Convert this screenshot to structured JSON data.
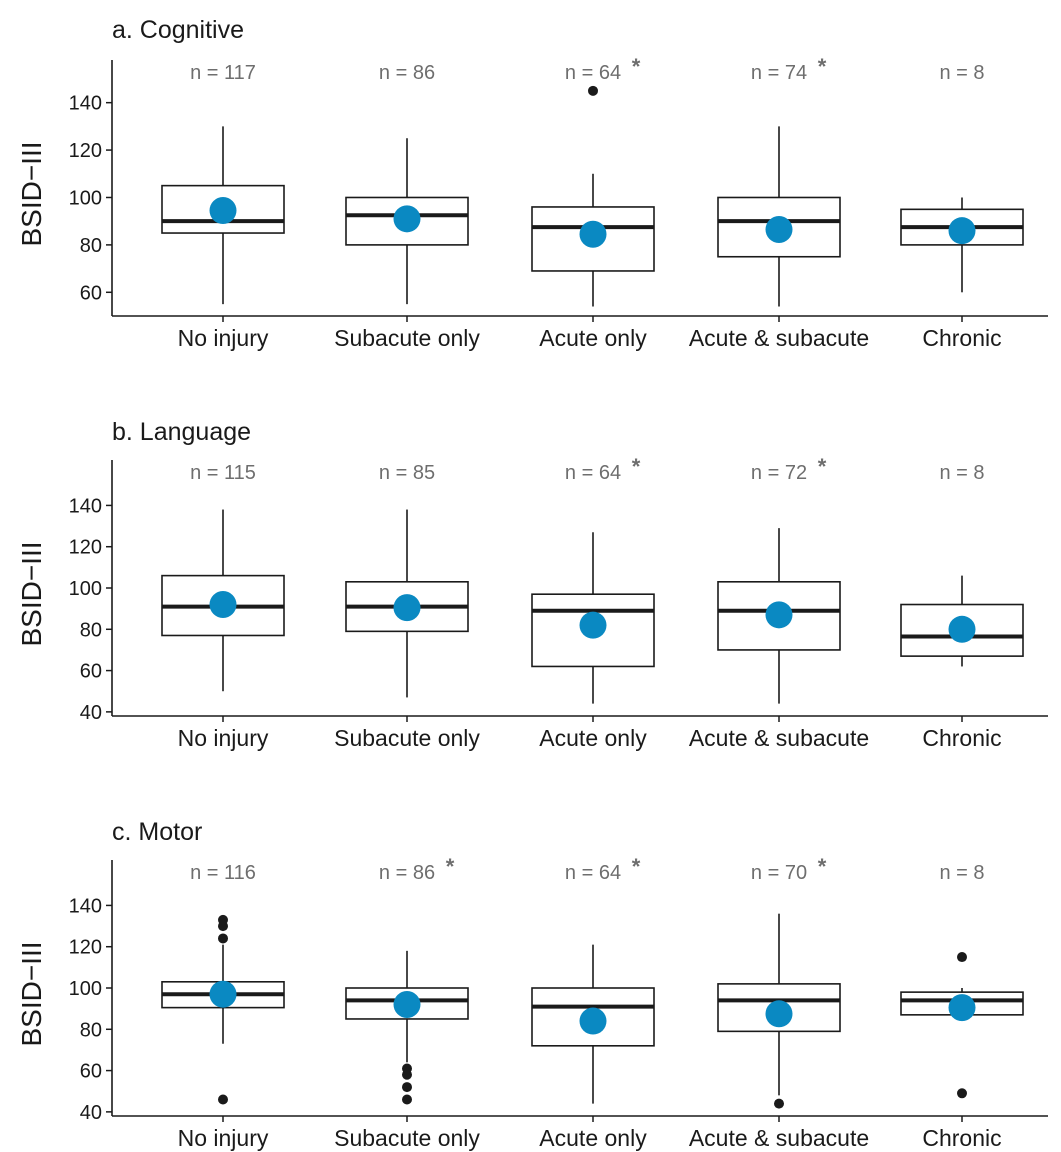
{
  "chart_data": [
    {
      "type": "box",
      "title": "a. Cognitive",
      "ylabel": "BSID−III",
      "ylim": [
        50,
        158
      ],
      "yticks": [
        60,
        80,
        100,
        120,
        140
      ],
      "categories": [
        "No injury",
        "Subacute only",
        "Acute only",
        "Acute & subacute",
        "Chronic"
      ],
      "n_labels": [
        "n = 117",
        "n = 86",
        "n = 64",
        "n = 74",
        "n = 8"
      ],
      "significant": [
        false,
        false,
        true,
        true,
        false
      ],
      "star_symbol": "*",
      "boxes": [
        {
          "whisker_low": 55,
          "q1": 85,
          "median": 90,
          "q3": 105,
          "whisker_high": 130,
          "mean": 94.5,
          "outliers": []
        },
        {
          "whisker_low": 55,
          "q1": 80,
          "median": 92.5,
          "q3": 100,
          "whisker_high": 125,
          "mean": 91,
          "outliers": []
        },
        {
          "whisker_low": 54,
          "q1": 69,
          "median": 87.5,
          "q3": 96,
          "whisker_high": 110,
          "mean": 84.5,
          "outliers": [
            145
          ]
        },
        {
          "whisker_low": 54,
          "q1": 75,
          "median": 90,
          "q3": 100,
          "whisker_high": 130,
          "mean": 86.5,
          "outliers": []
        },
        {
          "whisker_low": 60,
          "q1": 80,
          "median": 87.5,
          "q3": 95,
          "whisker_high": 100,
          "mean": 86,
          "outliers": []
        }
      ],
      "mean_color": "#0a89c2"
    },
    {
      "type": "box",
      "title": "b. Language",
      "ylabel": "BSID−III",
      "ylim": [
        38,
        162
      ],
      "yticks": [
        40,
        60,
        80,
        100,
        120,
        140
      ],
      "categories": [
        "No injury",
        "Subacute only",
        "Acute only",
        "Acute & subacute",
        "Chronic"
      ],
      "n_labels": [
        "n = 115",
        "n = 85",
        "n = 64",
        "n = 72",
        "n = 8"
      ],
      "significant": [
        false,
        false,
        true,
        true,
        false
      ],
      "star_symbol": "*",
      "boxes": [
        {
          "whisker_low": 50,
          "q1": 77,
          "median": 91,
          "q3": 106,
          "whisker_high": 138,
          "mean": 92,
          "outliers": []
        },
        {
          "whisker_low": 47,
          "q1": 79,
          "median": 91,
          "q3": 103,
          "whisker_high": 138,
          "mean": 90.5,
          "outliers": []
        },
        {
          "whisker_low": 44,
          "q1": 62,
          "median": 89,
          "q3": 97,
          "whisker_high": 127,
          "mean": 82,
          "outliers": []
        },
        {
          "whisker_low": 44,
          "q1": 70,
          "median": 89,
          "q3": 103,
          "whisker_high": 129,
          "mean": 87,
          "outliers": []
        },
        {
          "whisker_low": 62,
          "q1": 67,
          "median": 76.5,
          "q3": 92,
          "whisker_high": 106,
          "mean": 80,
          "outliers": []
        }
      ],
      "mean_color": "#0a89c2"
    },
    {
      "type": "box",
      "title": "c. Motor",
      "ylabel": "BSID−III",
      "ylim": [
        38,
        162
      ],
      "yticks": [
        40,
        60,
        80,
        100,
        120,
        140
      ],
      "categories": [
        "No injury",
        "Subacute only",
        "Acute only",
        "Acute & subacute",
        "Chronic"
      ],
      "n_labels": [
        "n = 116",
        "n = 86",
        "n = 64",
        "n = 70",
        "n = 8"
      ],
      "significant": [
        false,
        true,
        true,
        true,
        false
      ],
      "star_symbol": "*",
      "boxes": [
        {
          "whisker_low": 73,
          "q1": 90.5,
          "median": 97,
          "q3": 103,
          "whisker_high": 121,
          "mean": 97,
          "outliers": [
            46,
            124,
            130,
            133
          ]
        },
        {
          "whisker_low": 64,
          "q1": 85,
          "median": 94,
          "q3": 100,
          "whisker_high": 118,
          "mean": 92,
          "outliers": [
            46,
            52,
            58,
            61
          ]
        },
        {
          "whisker_low": 44,
          "q1": 72,
          "median": 91,
          "q3": 100,
          "whisker_high": 121,
          "mean": 84,
          "outliers": []
        },
        {
          "whisker_low": 48,
          "q1": 79,
          "median": 94,
          "q3": 102,
          "whisker_high": 136,
          "mean": 87.5,
          "outliers": [
            44
          ]
        },
        {
          "whisker_low": 87,
          "q1": 87,
          "median": 94,
          "q3": 98,
          "whisker_high": 100,
          "mean": 90.5,
          "outliers": [
            49,
            115
          ]
        }
      ],
      "mean_color": "#0a89c2"
    }
  ]
}
